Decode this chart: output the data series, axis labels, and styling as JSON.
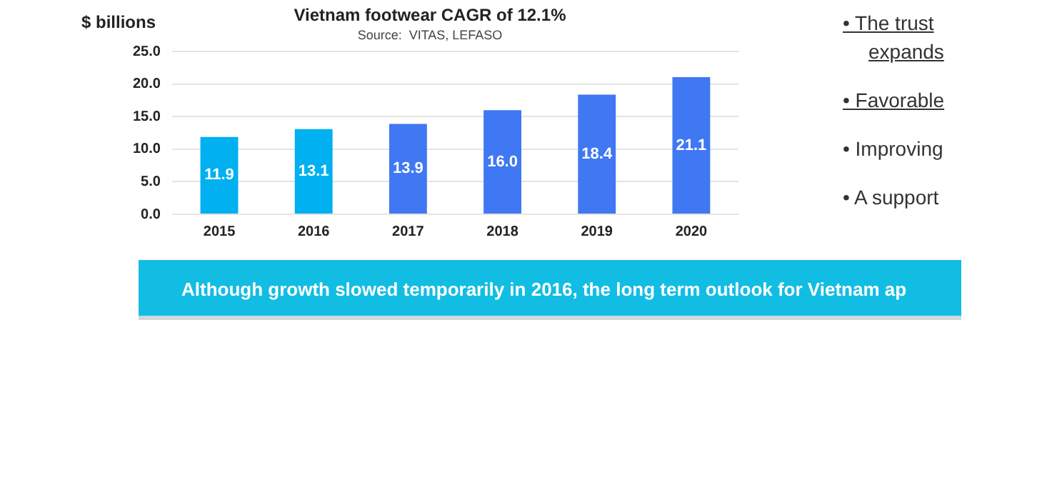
{
  "chart_data": {
    "type": "bar",
    "title": "Vietnam footwear CAGR of 12.1%",
    "subtitle": "Source:  VITAS, LEFASO",
    "ylabel": "$ billions",
    "categories": [
      "2015",
      "2016",
      "2017",
      "2018",
      "2019",
      "2020"
    ],
    "values": [
      11.9,
      13.1,
      13.9,
      16.0,
      18.4,
      21.1
    ],
    "colors": [
      "#00b0f0",
      "#00b0f0",
      "#3f78f2",
      "#3f78f2",
      "#3f78f2",
      "#3f78f2"
    ],
    "ylim": [
      0,
      25
    ],
    "yticks": [
      {
        "value": 0,
        "label": "0.0"
      },
      {
        "value": 5,
        "label": "5.0"
      },
      {
        "value": 10,
        "label": "10.0"
      },
      {
        "value": 15,
        "label": "15.0"
      },
      {
        "value": 20,
        "label": "20.0"
      },
      {
        "value": 25,
        "label": "25.0"
      }
    ],
    "value_labels": [
      "11.9",
      "13.1",
      "13.9",
      "16.0",
      "18.4",
      "21.1"
    ],
    "grid": "y",
    "legend": false,
    "annotations": [
      "Although growth slowed temporarily in 2016, the long term outlook for Vietnam ap",
      "• The trust expands",
      "• Favorable",
      "• Improving",
      "• A support"
    ]
  }
}
